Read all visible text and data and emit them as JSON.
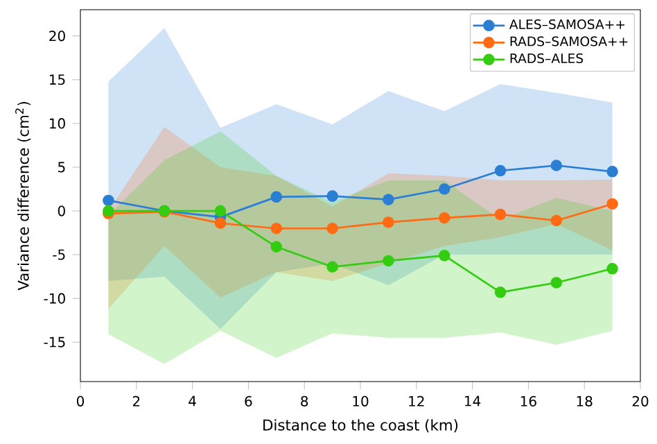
{
  "chart_data": {
    "type": "line",
    "xlabel": "Distance to the coast (km)",
    "ylabel": "Variance difference (cm$^{2}$)",
    "x": [
      1,
      3,
      5,
      7,
      9,
      11,
      13,
      15,
      17,
      19
    ],
    "series": [
      {
        "name": "ALES–SAMOSA++",
        "color": "#2a7fd4",
        "values": [
          1.2,
          0,
          -0.7,
          1.6,
          1.7,
          1.3,
          2.5,
          4.6,
          5.2,
          4.5
        ],
        "lower": [
          -8,
          -7.5,
          -13.5,
          -7,
          -6,
          -8.5,
          -5,
          -5,
          -5,
          -5
        ],
        "upper": [
          14.8,
          20.9,
          9.5,
          12.2,
          9.9,
          13.7,
          11.4,
          14.5,
          13.5,
          12.4
        ]
      },
      {
        "name": "RADS–SAMOSA++",
        "color": "#ff6a13",
        "values": [
          -0.3,
          -0.1,
          -1.4,
          -2.0,
          -2.0,
          -1.3,
          -0.8,
          -0.4,
          -1.1,
          0.8
        ],
        "lower": [
          -11.2,
          -4,
          -9.9,
          -7,
          -8,
          -6,
          -4,
          -3,
          -1.5,
          -4.5
        ],
        "upper": [
          0,
          9.6,
          5,
          4,
          0.5,
          4.3,
          4,
          3.5,
          3.5,
          3.6
        ]
      },
      {
        "name": "RADS–ALES",
        "color": "#33cc11",
        "values": [
          0,
          0,
          0,
          -4.1,
          -6.4,
          -5.7,
          -5.1,
          -9.3,
          -8.2,
          -6.6
        ],
        "lower": [
          -14.1,
          -17.5,
          -13.7,
          -16.8,
          -14,
          -14.5,
          -14.5,
          -13.9,
          -15.3,
          -13.7
        ],
        "upper": [
          -0.5,
          5.8,
          9.1,
          4,
          1,
          3.5,
          3.5,
          -1,
          1.5,
          0
        ]
      }
    ],
    "xlim": [
      0,
      20
    ],
    "ylim": [
      -19.5,
      23
    ],
    "xticks": [
      0,
      2,
      4,
      6,
      8,
      10,
      12,
      14,
      16,
      18,
      20
    ],
    "yticks": [
      -15,
      -10,
      -5,
      0,
      5,
      10,
      15,
      20
    ],
    "marker": "circle",
    "line_style": "solid",
    "legend": "top right",
    "grid": false
  }
}
